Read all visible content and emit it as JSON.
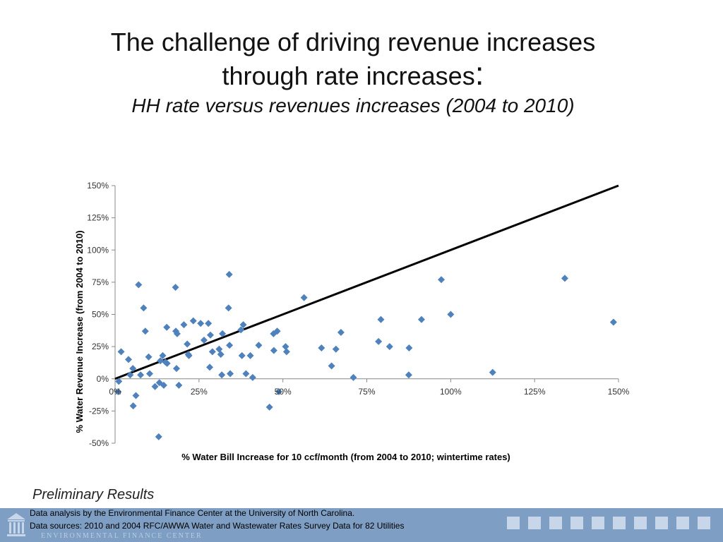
{
  "slide": {
    "title_line1": "The challenge of driving revenue increases",
    "title_line2": "through rate increases",
    "title_colon": ":",
    "subtitle": "HH rate versus revenues increases (2004 to 2010)",
    "note": "Preliminary Results",
    "footer_line1": "Data analysis by the Environmental Finance Center at the University of North Carolina.",
    "footer_line2": "Data sources: 2010 and 2004 RFC/AWWA Water and Wastewater Rates Survey Data for 82 Utilities",
    "footer_brand": "ENVIRONMENTAL FINANCE CENTER"
  },
  "colors": {
    "points": "#4f81bd",
    "line": "#000000",
    "footer": "#7e9ec3"
  },
  "chart_data": {
    "type": "scatter",
    "title": "",
    "xlabel": "% Water Bill Increase for 10 ccf/month (from 2004 to 2010; wintertime rates)",
    "ylabel": "% Water Revenue Increase (from 2004 to 2010)",
    "xlim": [
      0,
      150
    ],
    "ylim": [
      -50,
      150
    ],
    "xticks": [
      "0%",
      "25%",
      "50%",
      "75%",
      "100%",
      "125%",
      "150%"
    ],
    "yticks": [
      "150%",
      "125%",
      "100%",
      "75%",
      "50%",
      "25%",
      "0%",
      "-25%",
      "-50%"
    ],
    "xtick_values": [
      0,
      25,
      50,
      75,
      100,
      125,
      150
    ],
    "ytick_values": [
      150,
      125,
      100,
      75,
      50,
      25,
      0,
      -25,
      -50
    ],
    "reference_line": [
      [
        0,
        0
      ],
      [
        150,
        150
      ]
    ],
    "grid": false,
    "points": [
      [
        0.9,
        -10
      ],
      [
        1.1,
        -2
      ],
      [
        1.8,
        21
      ],
      [
        4,
        15
      ],
      [
        4.5,
        3
      ],
      [
        5.3,
        8
      ],
      [
        5.4,
        -21
      ],
      [
        6.2,
        -13
      ],
      [
        7,
        73
      ],
      [
        7.6,
        3
      ],
      [
        8.5,
        55
      ],
      [
        9,
        37
      ],
      [
        10,
        17
      ],
      [
        10.3,
        4
      ],
      [
        11.9,
        -6
      ],
      [
        13,
        -45
      ],
      [
        13.2,
        -3
      ],
      [
        13.5,
        14
      ],
      [
        14.2,
        18
      ],
      [
        14.5,
        -5
      ],
      [
        15,
        13
      ],
      [
        15.4,
        40
      ],
      [
        15.5,
        12
      ],
      [
        18,
        71
      ],
      [
        18.1,
        37
      ],
      [
        18.3,
        8
      ],
      [
        18.5,
        35
      ],
      [
        19,
        -5
      ],
      [
        20.5,
        42
      ],
      [
        21.5,
        27
      ],
      [
        21.8,
        19
      ],
      [
        22,
        18
      ],
      [
        23.3,
        45
      ],
      [
        25.5,
        43
      ],
      [
        26.5,
        30
      ],
      [
        27.8,
        43
      ],
      [
        28.2,
        9
      ],
      [
        28.4,
        34
      ],
      [
        29,
        21
      ],
      [
        31,
        23
      ],
      [
        31.5,
        19
      ],
      [
        31.8,
        3
      ],
      [
        32,
        35
      ],
      [
        33.8,
        55
      ],
      [
        34,
        81
      ],
      [
        34.1,
        26
      ],
      [
        34.3,
        4
      ],
      [
        37.5,
        38
      ],
      [
        37.8,
        18
      ],
      [
        38.2,
        42
      ],
      [
        39,
        4
      ],
      [
        40.3,
        18
      ],
      [
        41,
        1
      ],
      [
        42.8,
        26
      ],
      [
        46,
        -22
      ],
      [
        47.2,
        35
      ],
      [
        47.3,
        22
      ],
      [
        48.3,
        37
      ],
      [
        48.8,
        -10
      ],
      [
        50.8,
        25
      ],
      [
        51.1,
        21
      ],
      [
        56.3,
        63
      ],
      [
        61.5,
        24
      ],
      [
        64.5,
        10
      ],
      [
        65.8,
        23
      ],
      [
        67.3,
        36
      ],
      [
        71,
        1
      ],
      [
        78.5,
        29
      ],
      [
        79.2,
        46
      ],
      [
        81.8,
        25
      ],
      [
        87.5,
        3
      ],
      [
        87.6,
        24
      ],
      [
        91.3,
        46
      ],
      [
        97.2,
        77
      ],
      [
        100,
        50
      ],
      [
        112.5,
        5
      ],
      [
        134,
        78
      ],
      [
        148.5,
        44
      ]
    ]
  }
}
